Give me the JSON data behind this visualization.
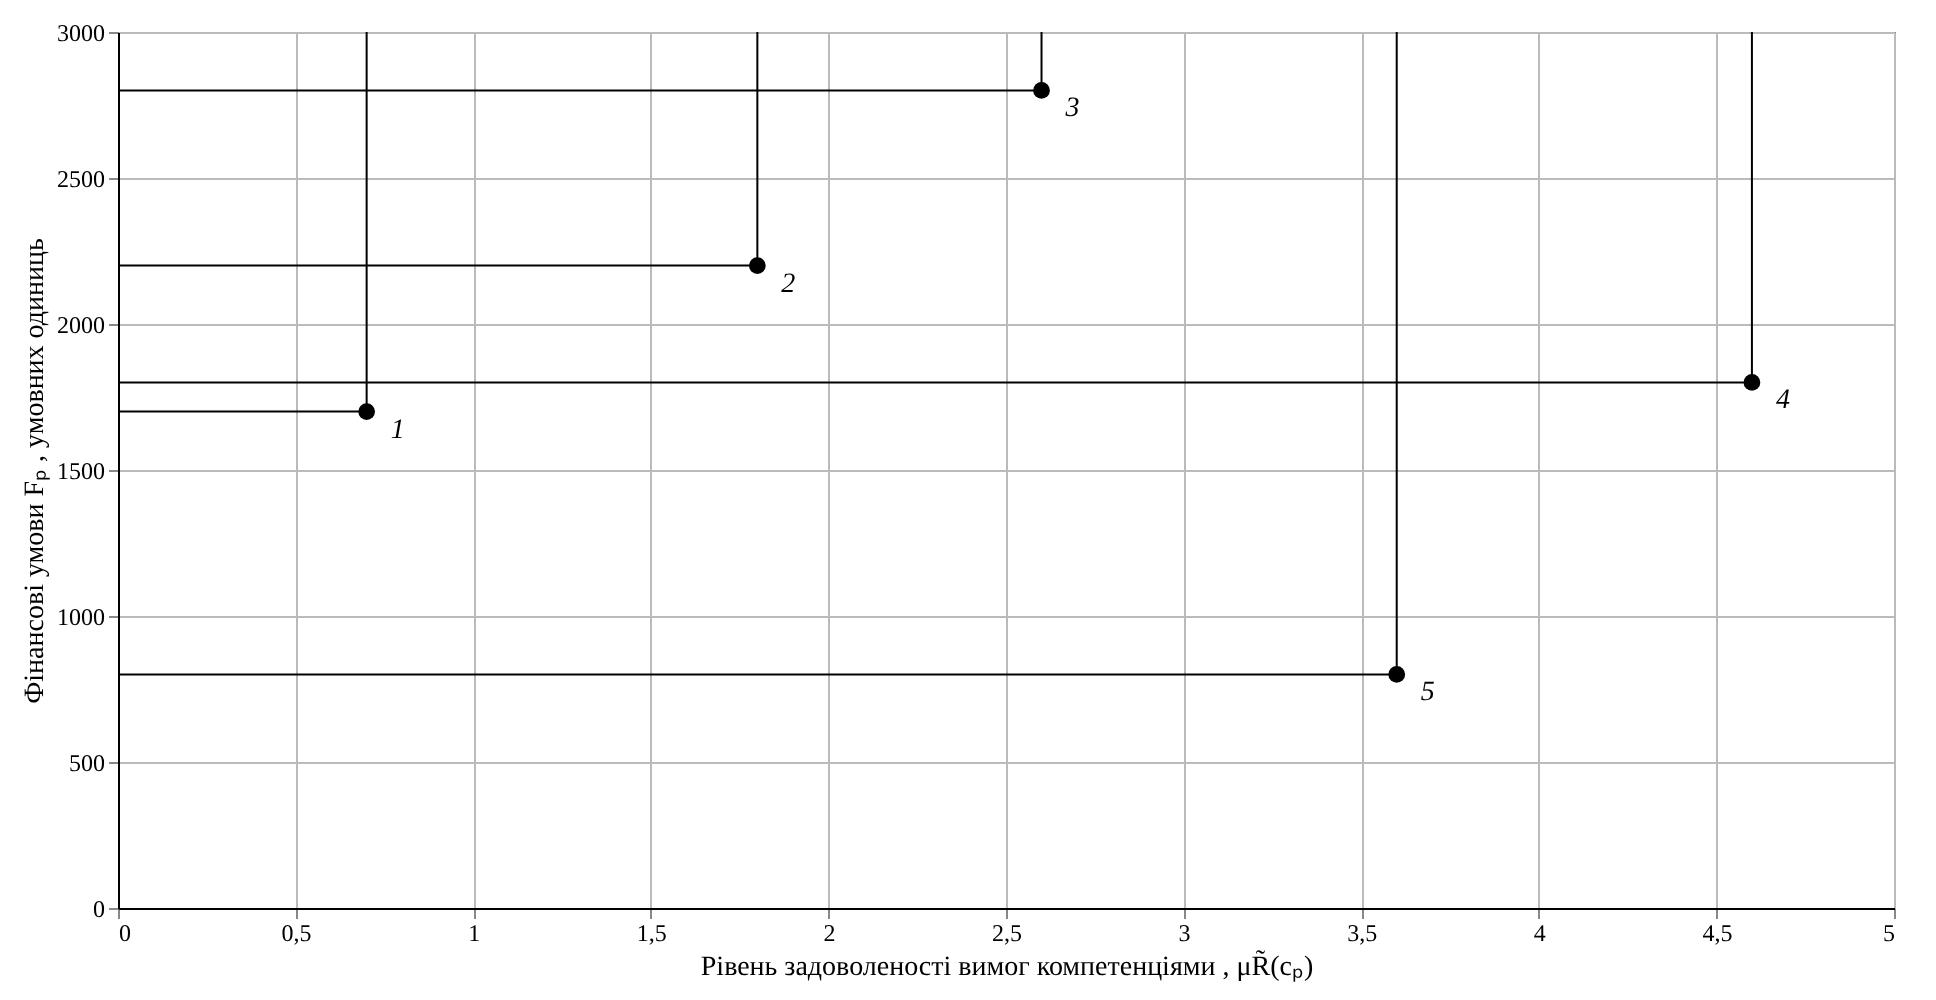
{
  "chart_data": {
    "type": "scatter",
    "xlabel": "Рівень задоволеності вимог компетенціями , μR̃(cₚ)",
    "ylabel": "Фінансові умови Fₚ , умовних одиниць",
    "xlim": [
      0,
      5
    ],
    "ylim": [
      0,
      3000
    ],
    "xticks": [
      0,
      {
        "value": 0.5,
        "label": "0,5"
      },
      1,
      {
        "value": 1.5,
        "label": "1,5"
      },
      2,
      {
        "value": 2.5,
        "label": "2,5"
      },
      3,
      {
        "value": 3.5,
        "label": "3,5"
      },
      4,
      {
        "value": 4.5,
        "label": "4,5"
      },
      5
    ],
    "yticks": [
      0,
      500,
      1000,
      1500,
      2000,
      2500,
      3000
    ],
    "grid": true,
    "marker": "circle",
    "series": [
      {
        "type": "line",
        "marker": "none",
        "color": "#000000",
        "x": [
          0,
          0.7,
          0.7
        ],
        "values": [
          1700,
          1700,
          3000
        ]
      },
      {
        "type": "line",
        "marker": "none",
        "color": "#000000",
        "x": [
          0,
          1.8,
          1.8
        ],
        "values": [
          2200,
          2200,
          3000
        ]
      },
      {
        "type": "line",
        "marker": "none",
        "color": "#000000",
        "x": [
          0,
          2.6,
          2.6
        ],
        "values": [
          2800,
          2800,
          3000
        ]
      },
      {
        "type": "line",
        "marker": "none",
        "color": "#000000",
        "x": [
          0,
          4.6,
          4.6
        ],
        "values": [
          1800,
          1800,
          3000
        ]
      },
      {
        "type": "line",
        "marker": "none",
        "color": "#000000",
        "x": [
          0,
          3.6,
          3.6
        ],
        "values": [
          800,
          800,
          3000
        ]
      },
      {
        "color": "#000000",
        "x": [
          0.7,
          1.8,
          2.6,
          4.6,
          3.6
        ],
        "values": [
          1700,
          2200,
          2800,
          1800,
          800
        ]
      }
    ],
    "annotations": [
      {
        "text": "1",
        "x": 0.7,
        "y": 1700
      },
      {
        "text": "2",
        "x": 1.8,
        "y": 2200
      },
      {
        "text": "3",
        "x": 2.6,
        "y": 2800
      },
      {
        "text": "4",
        "x": 4.6,
        "y": 1800
      },
      {
        "text": "5",
        "x": 3.6,
        "y": 800
      }
    ]
  }
}
